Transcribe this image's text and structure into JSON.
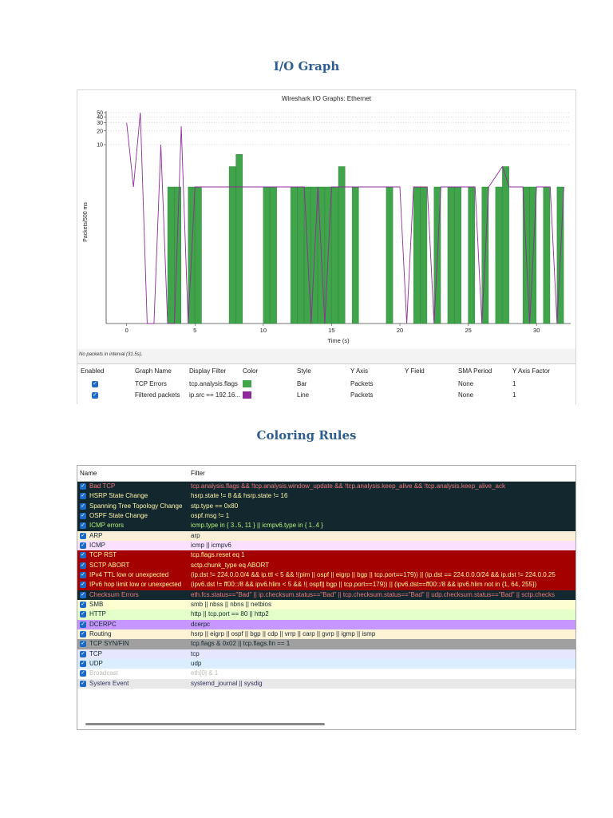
{
  "sections": {
    "io_graph_title": "I/O Graph",
    "coloring_rules_title": "Coloring Rules"
  },
  "io_graph": {
    "window_title": "Wireshark I/O Graphs: Ethernet",
    "status": "No packets in interval (31.5s).",
    "table_headers": [
      "Enabled",
      "Graph Name",
      "Display Filter",
      "Color",
      "Style",
      "Y Axis",
      "Y Field",
      "SMA Period",
      "Y Axis Factor"
    ],
    "graphs": [
      {
        "name": "TCP Errors",
        "filter": "tcp.analysis.flags",
        "color": "#3fa44a",
        "style": "Bar",
        "y_axis": "Packets",
        "y_field": "",
        "sma": "None",
        "factor": "1"
      },
      {
        "name": "Filtered packets",
        "filter": "ip.src == 192.16...",
        "color": "#8e2d9a",
        "style": "Line",
        "y_axis": "Packets",
        "y_field": "",
        "sma": "None",
        "factor": "1"
      }
    ]
  },
  "chart_data": {
    "type": "bar",
    "title": "Wireshark I/O Graphs: Ethernet",
    "xlabel": "Time (s)",
    "ylabel": "Packets/500 ms",
    "xlim": [
      -1.5,
      32.5
    ],
    "x_ticks": [
      "0",
      "5",
      "10",
      "15",
      "20",
      "25",
      "30"
    ],
    "y_ticks": [
      "10",
      "20",
      "30",
      "40",
      "50"
    ],
    "grid": "horizontal dotted",
    "series": [
      {
        "name": "TCP Errors",
        "style": "bar",
        "color": "#3fa44a",
        "points": [
          [
            3.0,
            1
          ],
          [
            3.5,
            1
          ],
          [
            4.5,
            1
          ],
          [
            5.0,
            1
          ],
          [
            7.5,
            2
          ],
          [
            8.0,
            2.6
          ],
          [
            10.0,
            1
          ],
          [
            10.5,
            1
          ],
          [
            12.0,
            1
          ],
          [
            12.5,
            1
          ],
          [
            13.0,
            1
          ],
          [
            13.5,
            1
          ],
          [
            14.0,
            1
          ],
          [
            14.5,
            1
          ],
          [
            15.0,
            1
          ],
          [
            15.5,
            2
          ],
          [
            16.5,
            1
          ],
          [
            19.0,
            1
          ],
          [
            21.0,
            1
          ],
          [
            21.5,
            1
          ],
          [
            22.5,
            1
          ],
          [
            23.5,
            1
          ],
          [
            24.0,
            1
          ],
          [
            25.0,
            1
          ],
          [
            26.0,
            1
          ],
          [
            27.0,
            1
          ],
          [
            27.5,
            2
          ],
          [
            29.0,
            1
          ],
          [
            29.5,
            1
          ],
          [
            30.5,
            1
          ],
          [
            31.5,
            1
          ]
        ]
      },
      {
        "name": "Filtered packets",
        "style": "line",
        "color": "#8e2d9a",
        "points": [
          [
            0,
            30
          ],
          [
            0.5,
            1
          ],
          [
            1.0,
            50
          ],
          [
            1.5,
            0
          ],
          [
            2.0,
            0
          ],
          [
            2.5,
            10
          ],
          [
            3.0,
            0
          ],
          [
            3.5,
            0
          ],
          [
            4.0,
            25
          ],
          [
            4.5,
            0
          ],
          [
            5.0,
            1
          ],
          [
            8.0,
            1
          ],
          [
            10.0,
            1
          ],
          [
            12.0,
            1
          ],
          [
            13.0,
            1
          ],
          [
            13.5,
            0
          ],
          [
            14.0,
            1
          ],
          [
            14.5,
            0
          ],
          [
            15.0,
            1
          ],
          [
            16.5,
            1
          ],
          [
            20.0,
            1
          ],
          [
            20.5,
            0
          ],
          [
            21.0,
            1
          ],
          [
            22.0,
            1
          ],
          [
            22.5,
            0
          ],
          [
            23.0,
            1
          ],
          [
            25.5,
            1
          ],
          [
            26.0,
            0
          ],
          [
            26.5,
            1
          ],
          [
            27.5,
            2
          ],
          [
            28.0,
            1
          ],
          [
            29.0,
            1
          ],
          [
            29.5,
            0
          ],
          [
            30.0,
            1
          ],
          [
            31.0,
            1
          ],
          [
            31.5,
            0
          ],
          [
            32.0,
            1
          ]
        ]
      }
    ]
  },
  "coloring_rules": {
    "headers": {
      "name": "Name",
      "filter": "Filter"
    },
    "rules": [
      {
        "name": "Bad TCP",
        "filter": "tcp.analysis.flags && !tcp.analysis.window_update && !tcp.analysis.keep_alive && !tcp.analysis.keep_alive_ack",
        "bg": "#12272e",
        "fg": "#f07a7a"
      },
      {
        "name": "HSRP State Change",
        "filter": "hsrp.state != 8 && hsrp.state != 16",
        "bg": "#12272e",
        "fg": "#fff6a8"
      },
      {
        "name": "Spanning Tree Topology  Change",
        "filter": "stp.type == 0x80",
        "bg": "#12272e",
        "fg": "#fff6a8"
      },
      {
        "name": "OSPF State Change",
        "filter": "ospf.msg != 1",
        "bg": "#12272e",
        "fg": "#fff6a8"
      },
      {
        "name": "ICMP errors",
        "filter": "icmp.type in { 3..5, 11 } || icmpv6.type in { 1..4 }",
        "bg": "#12272e",
        "fg": "#b6f07c"
      },
      {
        "name": "ARP",
        "filter": "arp",
        "bg": "#faf0d7",
        "fg": "#12272e"
      },
      {
        "name": "ICMP",
        "filter": "icmp || icmpv6",
        "bg": "#fce0ff",
        "fg": "#12272e"
      },
      {
        "name": "TCP RST",
        "filter": "tcp.flags.reset eq 1",
        "bg": "#a40000",
        "fg": "#fffc9c"
      },
      {
        "name": "SCTP ABORT",
        "filter": "sctp.chunk_type eq ABORT",
        "bg": "#a40000",
        "fg": "#fffc9c"
      },
      {
        "name": "IPv4 TTL low or unexpected",
        "filter": "(ip.dst != 224.0.0.0/4 && ip.ttl < 5 && !(pim || ospf || eigrp || bgp || tcp.port==179)) || (ip.dst == 224.0.0.0/24 && ip.dst != 224.0.0.25",
        "bg": "#a40000",
        "fg": "#fffc9c"
      },
      {
        "name": "IPv6 hop limit low or unexpected",
        "filter": "(ipv6.dst != ff00::/8 && ipv6.hlim < 5 && !( ospf|| bgp || tcp.port==179)) || (ipv6.dst==ff00::/8 && ipv6.hlim not in {1, 64, 255})",
        "bg": "#a40000",
        "fg": "#fffc9c"
      },
      {
        "name": "Checksum Errors",
        "filter": "eth.fcs.status==\"Bad\" || ip.checksum.status==\"Bad\" || tcp.checksum.status==\"Bad\" || udp.checksum.status==\"Bad\" || sctp.checks",
        "bg": "#12272e",
        "fg": "#f07a7a"
      },
      {
        "name": "SMB",
        "filter": "smb || nbss || nbns || netbios",
        "bg": "#feffd0",
        "fg": "#12272e"
      },
      {
        "name": "HTTP",
        "filter": "http || tcp.port == 80 || http2",
        "bg": "#e4ffc7",
        "fg": "#12272e"
      },
      {
        "name": "DCERPC",
        "filter": "dcerpc",
        "bg": "#c797ff",
        "fg": "#12272e"
      },
      {
        "name": "Routing",
        "filter": "hsrp || eigrp || ospf || bgp || cdp || vrrp || carp || gvrp || igmp || ismp",
        "bg": "#fff3d6",
        "fg": "#12272e"
      },
      {
        "name": "TCP SYN/FIN",
        "filter": "tcp.flags & 0x02 || tcp.flags.fin == 1",
        "bg": "#a0a0a0",
        "fg": "#12272e"
      },
      {
        "name": "TCP",
        "filter": "tcp",
        "bg": "#e7e6ff",
        "fg": "#12272e"
      },
      {
        "name": "UDP",
        "filter": "udp",
        "bg": "#daeeff",
        "fg": "#12272e"
      },
      {
        "name": "Broadcast",
        "filter": "eth[0] & 1",
        "bg": "#ffffff",
        "fg": "#babdb6"
      },
      {
        "name": "System Event",
        "filter": "systemd_journal || sysdig",
        "bg": "#e8e8e8",
        "fg": "#30325d"
      }
    ]
  }
}
